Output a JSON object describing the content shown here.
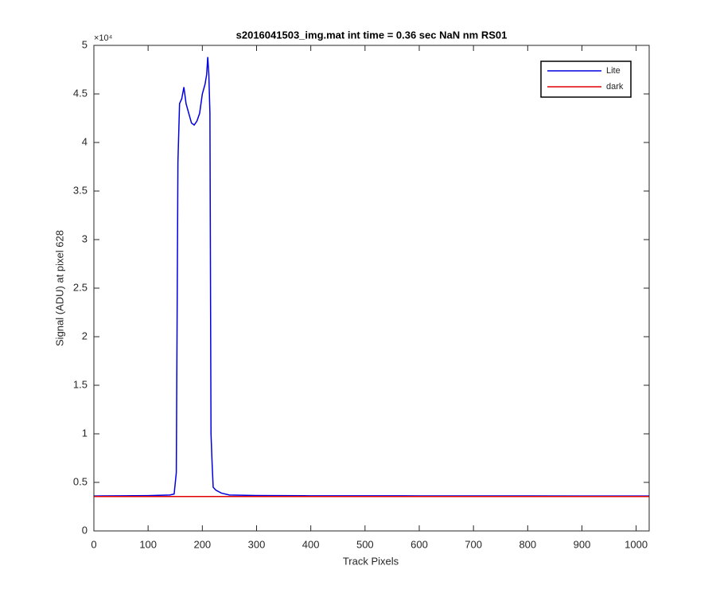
{
  "chart_data": {
    "type": "line",
    "title": "s2016041503_img.mat int time = 0.36 sec  NaN nm RS01",
    "x_label": "Track Pixels",
    "y_label": "Signal (ADU) at pixel 628",
    "y_multiplier": "×10⁴",
    "xlim": [
      0,
      1024
    ],
    "ylim": [
      0,
      5
    ],
    "xticks": [
      0,
      100,
      200,
      300,
      400,
      500,
      600,
      700,
      800,
      900,
      1000
    ],
    "yticks": [
      0,
      0.5,
      1,
      1.5,
      2,
      2.5,
      3,
      3.5,
      4,
      4.5,
      5
    ],
    "legend_position": "upper-right",
    "series": [
      {
        "name": "Lite",
        "color": "#0000e0",
        "x": [
          0,
          50,
          100,
          140,
          148,
          152,
          155,
          158,
          162,
          166,
          170,
          175,
          180,
          185,
          190,
          195,
          200,
          205,
          208,
          210,
          212,
          214,
          216,
          218,
          220,
          225,
          235,
          250,
          300,
          400,
          500,
          600,
          700,
          800,
          900,
          1024
        ],
        "values": [
          0.36,
          0.362,
          0.364,
          0.37,
          0.38,
          0.6,
          3.8,
          4.4,
          4.45,
          4.57,
          4.4,
          4.3,
          4.2,
          4.18,
          4.22,
          4.3,
          4.5,
          4.6,
          4.7,
          4.88,
          4.7,
          4.3,
          1.0,
          0.7,
          0.45,
          0.42,
          0.39,
          0.37,
          0.365,
          0.362,
          0.362,
          0.361,
          0.361,
          0.361,
          0.36,
          0.36
        ]
      },
      {
        "name": "dark",
        "color": "#e00000",
        "x": [
          0,
          1024
        ],
        "values": [
          0.355,
          0.355
        ]
      }
    ]
  }
}
